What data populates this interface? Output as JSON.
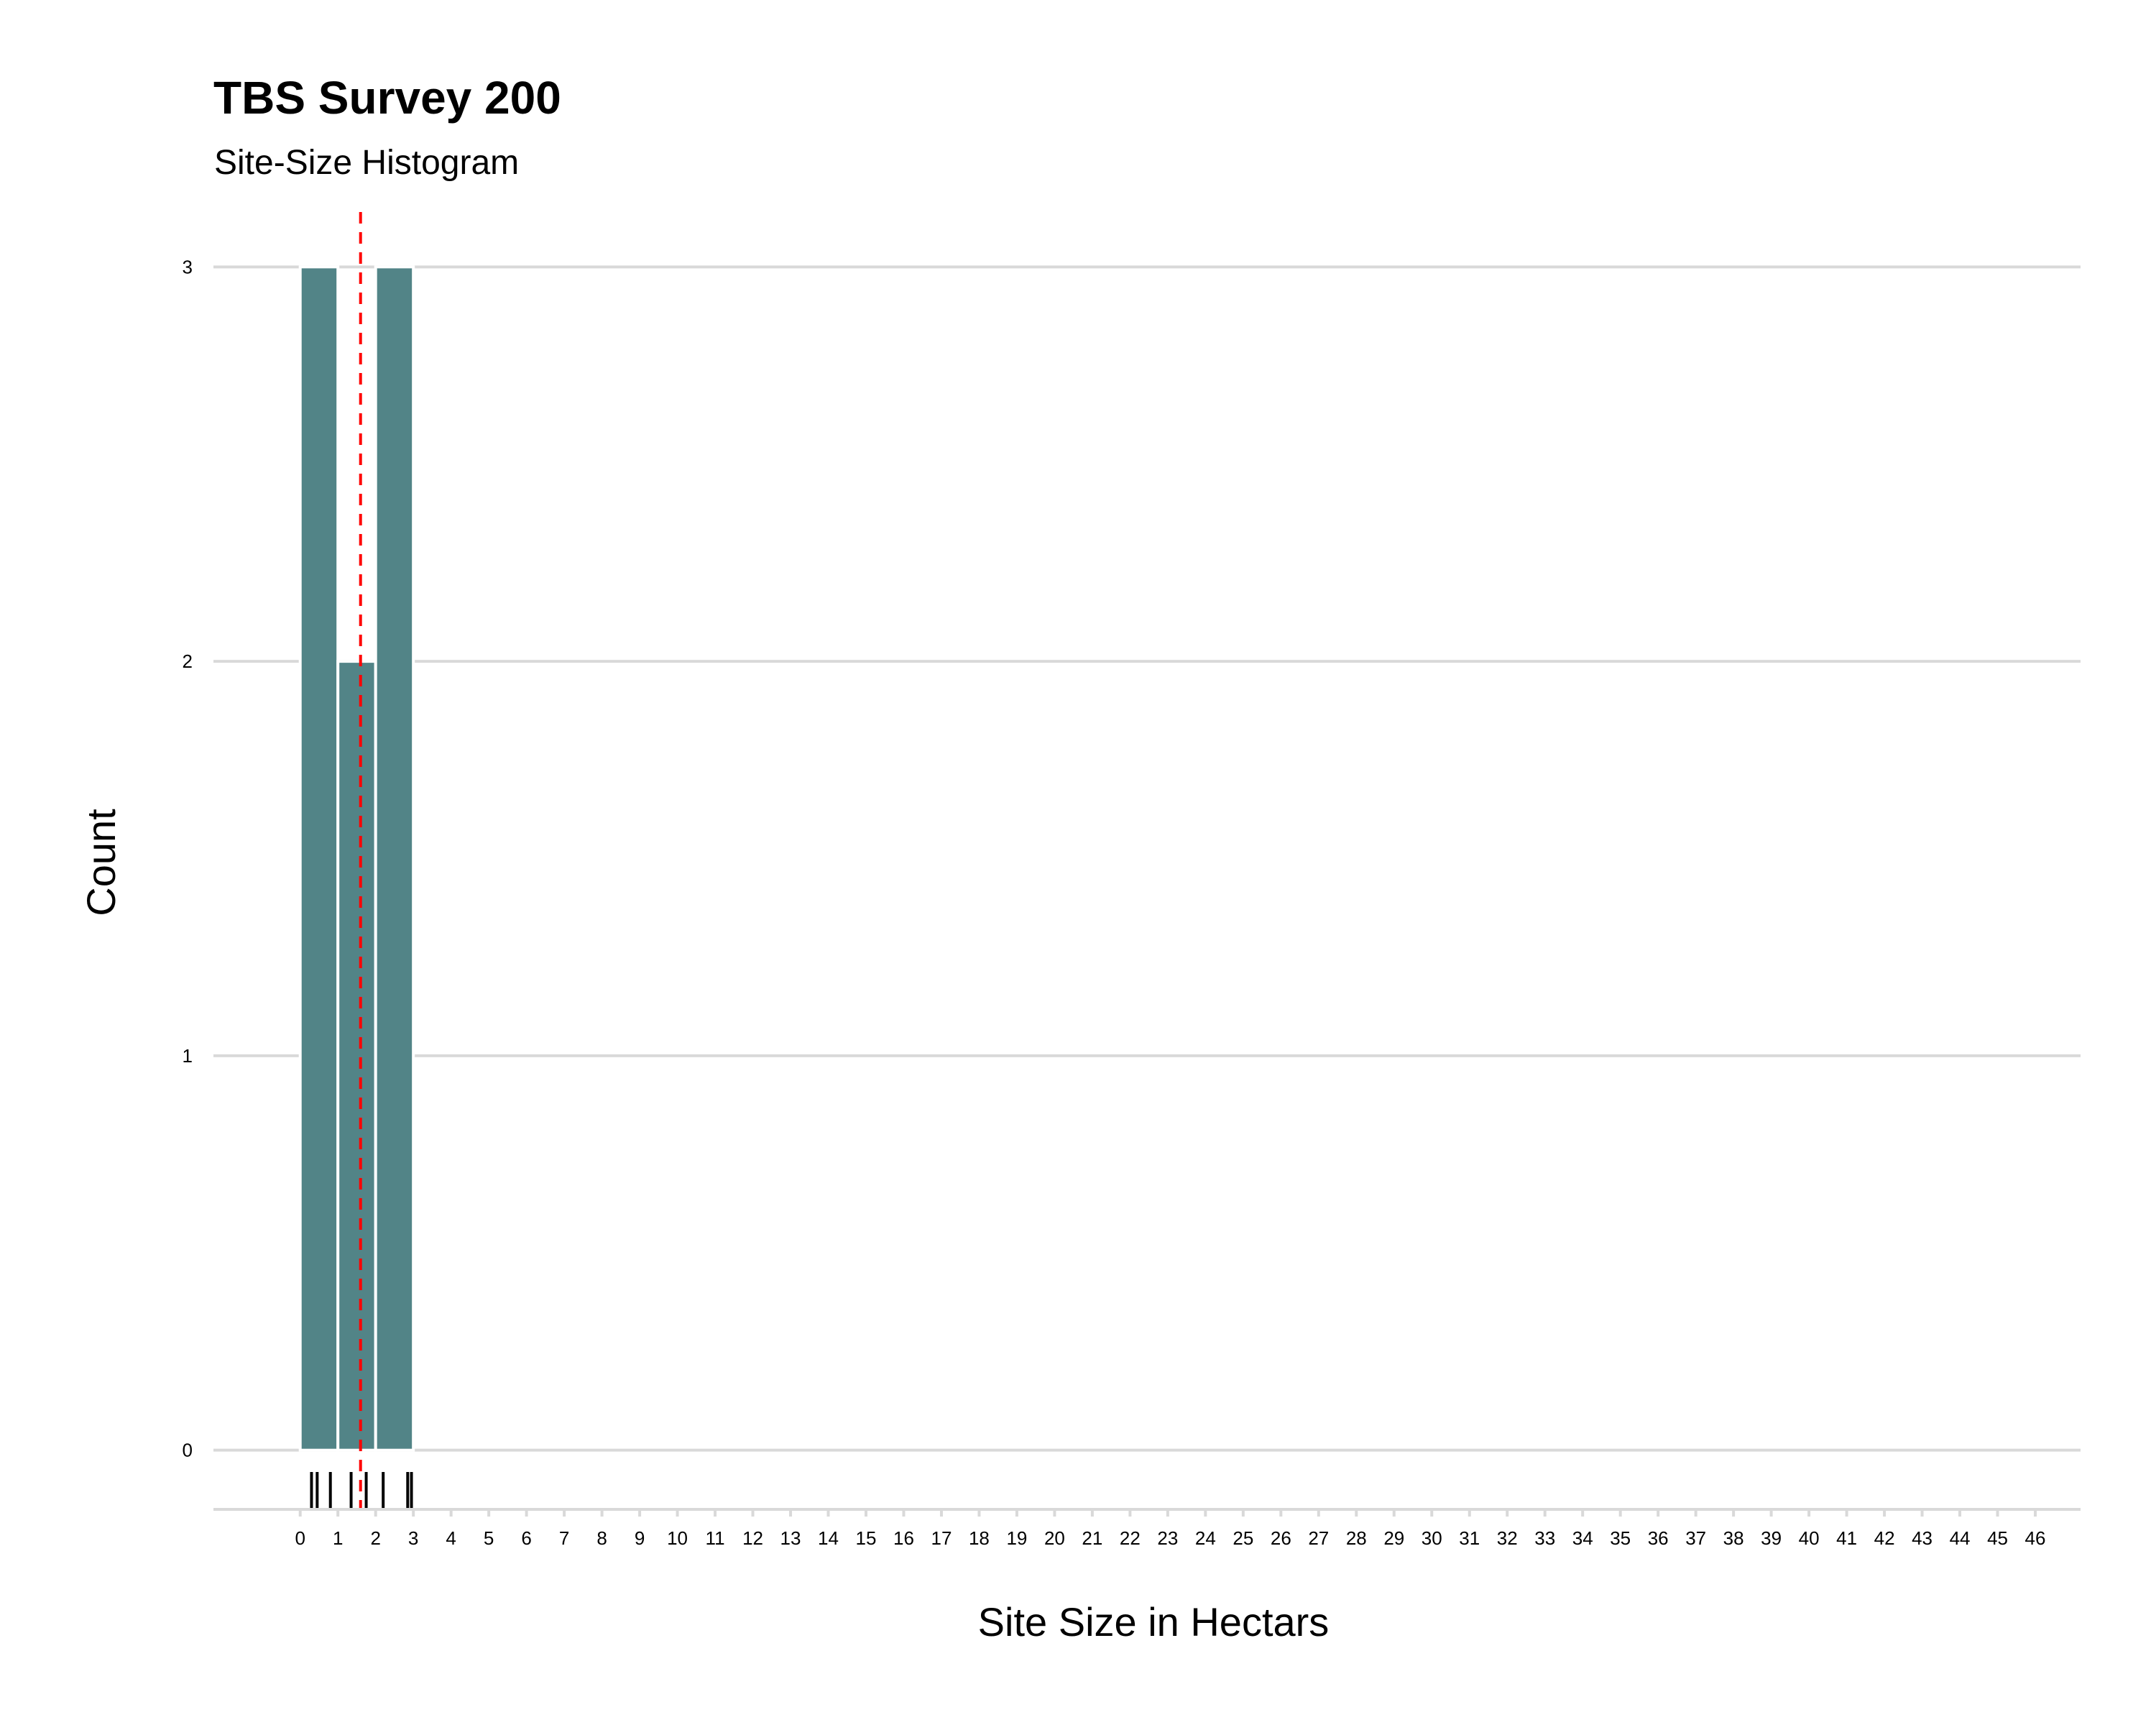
{
  "chart_data": {
    "type": "bar",
    "title": "TBS Survey 200",
    "subtitle": "Site-Size Histogram",
    "xlabel": "Site Size in Hectars",
    "ylabel": "Count",
    "bins": [
      {
        "x_start": 0,
        "x_end": 1,
        "count": 3
      },
      {
        "x_start": 1,
        "x_end": 2,
        "count": 2
      },
      {
        "x_start": 2,
        "x_end": 3,
        "count": 3
      }
    ],
    "rug_values": [
      0.3,
      0.45,
      0.8,
      1.35,
      1.75,
      2.2,
      2.85,
      2.95
    ],
    "mean_line": {
      "x": 1.6,
      "color": "#ff0000",
      "style": "dashed"
    },
    "xlim": [
      -2.3,
      47.2
    ],
    "ylim": [
      -0.15,
      3.13
    ],
    "x_ticks": [
      "0",
      "1",
      "2",
      "3",
      "4",
      "5",
      "6",
      "7",
      "8",
      "9",
      "10",
      "11",
      "12",
      "13",
      "14",
      "15",
      "16",
      "17",
      "18",
      "19",
      "20",
      "21",
      "22",
      "23",
      "24",
      "25",
      "26",
      "27",
      "28",
      "29",
      "30",
      "31",
      "32",
      "33",
      "34",
      "35",
      "36",
      "37",
      "38",
      "39",
      "40",
      "41",
      "42",
      "43",
      "44",
      "45",
      "46"
    ],
    "y_ticks": [
      "0",
      "1",
      "2",
      "3"
    ],
    "grid": "horizontal",
    "legend": "none",
    "bar_color": "#528487",
    "bar_outline": "#ffffff",
    "rug_color": "#000000",
    "grid_color": "#d9d9d9"
  }
}
